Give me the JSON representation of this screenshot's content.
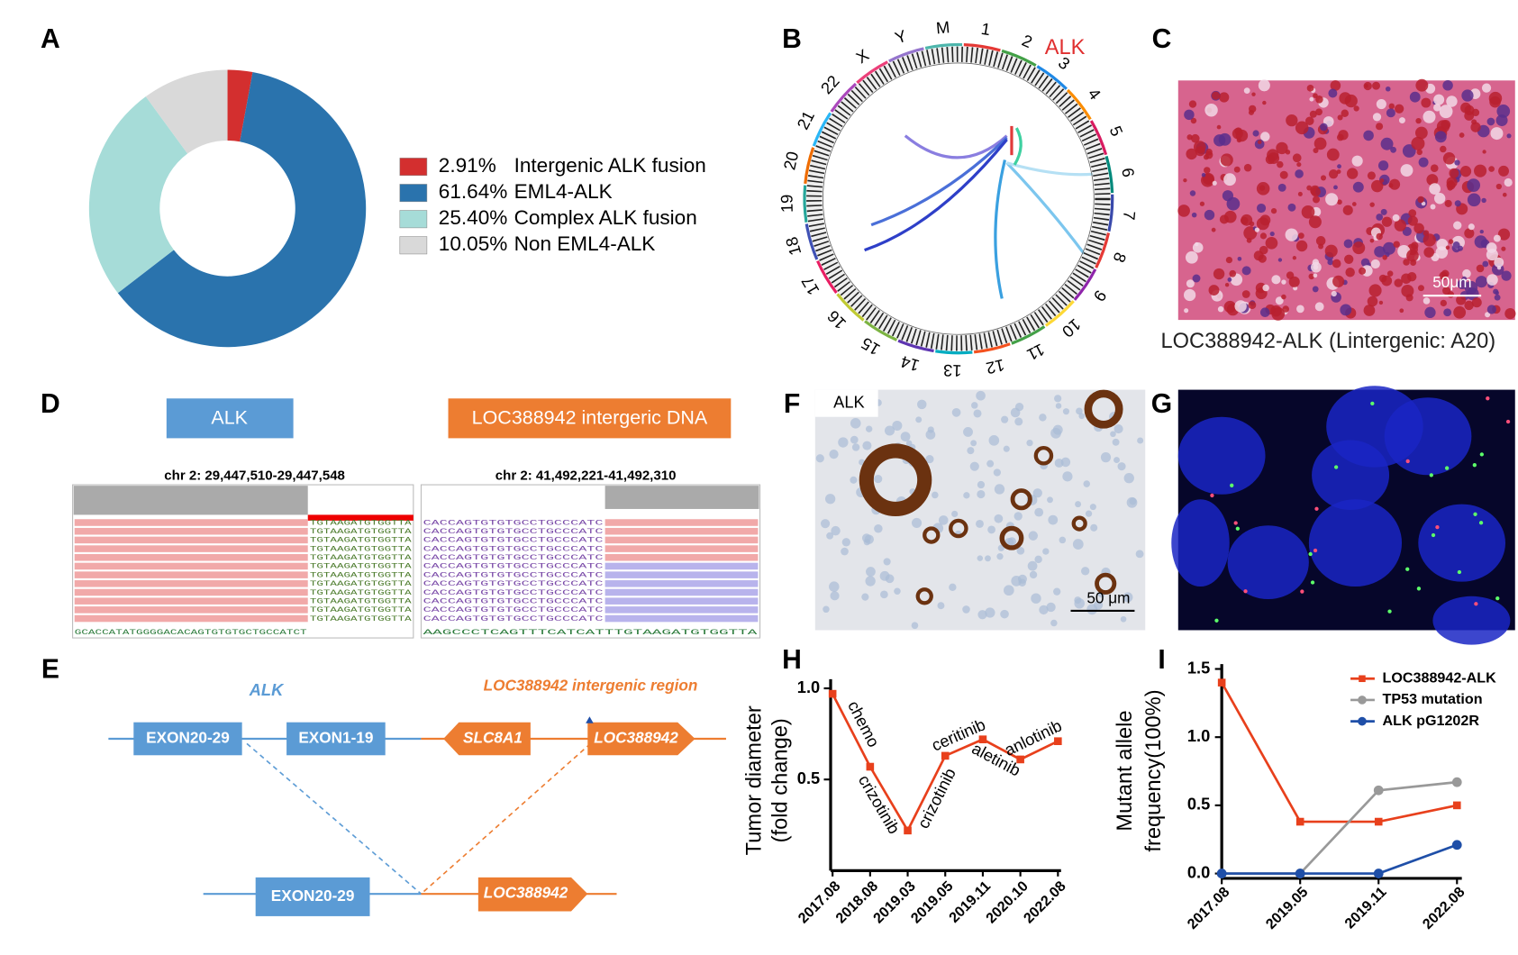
{
  "panel_labels": [
    "A",
    "B",
    "C",
    "D",
    "E",
    "F",
    "G",
    "H",
    "I"
  ],
  "chart_data": [
    {
      "type": "donut",
      "categories": [
        "Intergenic ALK fusion",
        "EML4-ALK",
        "Complex ALK fusion",
        "Non EML4-ALK"
      ],
      "values": [
        2.91,
        61.64,
        25.4,
        10.05
      ],
      "value_labels": [
        "2.91%",
        "61.64%",
        "25.40%",
        "10.05%"
      ],
      "colors": [
        "#d32f2f",
        "#2a73ad",
        "#a6dcd8",
        "#d9d9d9"
      ]
    },
    {
      "type": "line",
      "categories": [
        "2017.08",
        "2018.08",
        "2019.03",
        "2019.05",
        "2019.11",
        "2020.10",
        "2022.08"
      ],
      "values": [
        0.97,
        0.57,
        0.22,
        0.63,
        0.72,
        0.61,
        0.71
      ],
      "color": "#e8401c",
      "marker": "square",
      "ylabel": [
        "Tumor diameter",
        "(fold change)"
      ],
      "ylim": [
        0,
        1.05
      ],
      "yticks": [
        0.5,
        {
          "value": 1,
          "label": "1.0"
        }
      ],
      "annotations": [
        "chemo",
        "crizotinib",
        "crizotinib",
        "ceritinib",
        "aletinib",
        "anlotinib"
      ]
    },
    {
      "type": "line",
      "categories": [
        "2017.08",
        "2019.05",
        "2019.11",
        "2022.08"
      ],
      "series": [
        {
          "name": "LOC388942-ALK",
          "color": "#e8401c",
          "marker": "square",
          "values": [
            1.4,
            0.38,
            0.38,
            0.5
          ]
        },
        {
          "name": "TP53 mutation",
          "color": "#999999",
          "marker": "circle",
          "values": [
            0,
            0,
            0.61,
            0.67
          ]
        },
        {
          "name": "ALK pG1202R",
          "color": "#1f4fa8",
          "marker": "circle",
          "values": [
            0,
            0,
            0,
            0.21
          ]
        }
      ],
      "ylabel": [
        "Mutant allele",
        "frequency(100%)"
      ],
      "ylim": [
        0,
        1.5
      ],
      "yticks": [
        {
          "value": 0,
          "label": "0.0"
        },
        0.5,
        {
          "value": 1,
          "label": "1.0"
        },
        1.5
      ]
    }
  ],
  "circos": {
    "chromosomes": [
      "1",
      "2",
      "3",
      "4",
      "5",
      "6",
      "7",
      "8",
      "9",
      "10",
      "11",
      "12",
      "13",
      "14",
      "15",
      "16",
      "17",
      "18",
      "19",
      "20",
      "21",
      "22",
      "X",
      "Y",
      "M"
    ],
    "highlight": "ALK"
  },
  "histology": {
    "caption": "LOC388942-ALK (Lintergenic: A20)",
    "scale_bar": "50μm"
  },
  "sequencing": {
    "left": {
      "gene": "ALK",
      "locus": "chr 2: 29,447,510-29,447,548",
      "read": "TGTAAGATGTGGTTA",
      "reference": "GCACCATATGGGGACACAGTGTGTGCTGCCATCT"
    },
    "right": {
      "gene": "LOC388942 intergeric DNA",
      "locus": "chr 2: 41,492,221-41,492,310",
      "read": "CACCAGTGTGTGCCTGCCCATC",
      "reference": "AAGCCCTCAGTTTCATCATTTGTAAGATGTGGTTA"
    }
  },
  "fusion": {
    "gene_left": "ALK",
    "gene_right": "LOC388942 intergenic region",
    "top": [
      "EXON20-29",
      "EXON1-19",
      "SLC8A1",
      "LOC388942"
    ],
    "bottom": [
      "EXON20-29",
      "LOC388942"
    ]
  },
  "ihc": {
    "label": "ALK",
    "scale_bar": "50 μm"
  }
}
